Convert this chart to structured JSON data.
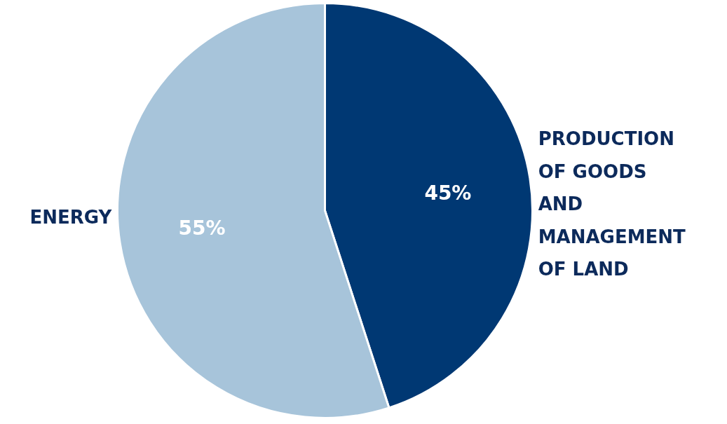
{
  "chart_data": {
    "type": "pie",
    "categories": [
      "PRODUCTION OF GOODS AND MANAGEMENT OF LAND",
      "ENERGY"
    ],
    "values": [
      45,
      55
    ],
    "colors": [
      "#003873",
      "#a7c4da"
    ],
    "value_labels": [
      "45%",
      "55%"
    ]
  }
}
